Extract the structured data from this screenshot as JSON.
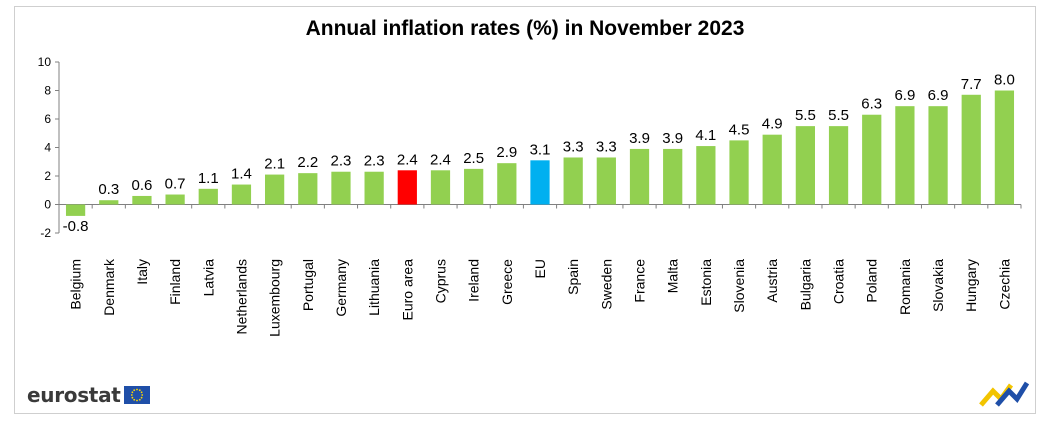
{
  "logo": {
    "text": "eurostat",
    "flag_icon": "eu-flag-icon",
    "corner_icon": "eurostat-chevron-icon"
  },
  "colors": {
    "default_bar": "#92d050",
    "euro_area_bar": "#ff0000",
    "eu_bar": "#00b0f0",
    "axis": "#808080"
  },
  "chart_data": {
    "type": "bar",
    "title": "Annual inflation rates (%)  in November 2023",
    "xlabel": "",
    "ylabel": "",
    "ylim": [
      -2,
      10
    ],
    "yticks": [
      -2,
      0,
      2,
      4,
      6,
      8,
      10
    ],
    "grid": false,
    "legend": "none",
    "categories": [
      "Belgium",
      "Denmark",
      "Italy",
      "Finland",
      "Latvia",
      "Netherlands",
      "Luxembourg",
      "Portugal",
      "Germany",
      "Lithuania",
      "Euro area",
      "Cyprus",
      "Ireland",
      "Greece",
      "EU",
      "Spain",
      "Sweden",
      "France",
      "Malta",
      "Estonia",
      "Slovenia",
      "Austria",
      "Bulgaria",
      "Croatia",
      "Poland",
      "Romania",
      "Slovakia",
      "Hungary",
      "Czechia"
    ],
    "values": [
      -0.8,
      0.3,
      0.6,
      0.7,
      1.1,
      1.4,
      2.1,
      2.2,
      2.3,
      2.3,
      2.4,
      2.4,
      2.5,
      2.9,
      3.1,
      3.3,
      3.3,
      3.9,
      3.9,
      4.1,
      4.5,
      4.9,
      5.5,
      5.5,
      6.3,
      6.9,
      6.9,
      7.7,
      8.0
    ],
    "data_labels": [
      "-0.8",
      "0.3",
      "0.6",
      "0.7",
      "1.1",
      "1.4",
      "2.1",
      "2.2",
      "2.3",
      "2.3",
      "2.4",
      "2.4",
      "2.5",
      "2.9",
      "3.1",
      "3.3",
      "3.3",
      "3.9",
      "3.9",
      "4.1",
      "4.5",
      "4.9",
      "5.5",
      "5.5",
      "6.3",
      "6.9",
      "6.9",
      "7.7",
      "8.0"
    ],
    "highlight": {
      "Euro area": "#ff0000",
      "EU": "#00b0f0"
    }
  }
}
